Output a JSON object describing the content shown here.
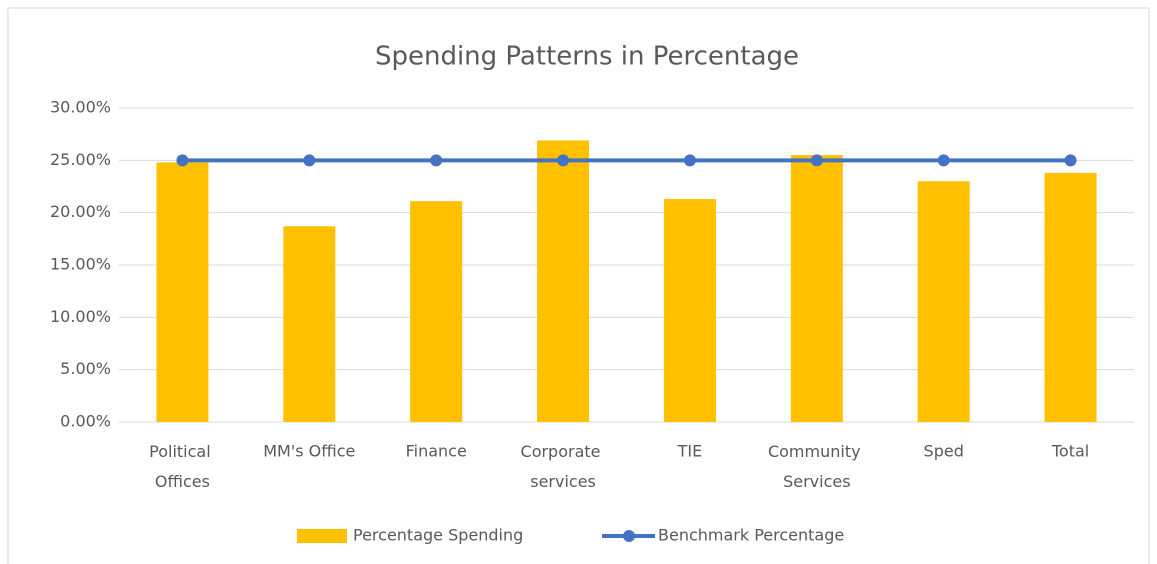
{
  "chart_data": {
    "type": "bar",
    "title": "Spending Patterns in Percentage",
    "categories": [
      "Political Offices",
      "MM's Office",
      "Finance",
      "Corporate services",
      "TIE",
      "Community Services",
      "Sped",
      "Total"
    ],
    "series": [
      {
        "name": "Percentage Spending",
        "type": "bar",
        "color": "#ffc000",
        "values": [
          24.8,
          18.7,
          21.1,
          26.9,
          21.3,
          25.5,
          23.0,
          23.8
        ]
      },
      {
        "name": "Benchmark Percentage",
        "type": "line",
        "color": "#4472c4",
        "values": [
          25,
          25,
          25,
          25,
          25,
          25,
          25,
          25
        ]
      }
    ],
    "ylim": [
      0,
      30
    ],
    "yticks": [
      {
        "value": 0,
        "label": "0.00%"
      },
      {
        "value": 5,
        "label": "5.00%"
      },
      {
        "value": 10,
        "label": "10.00%"
      },
      {
        "value": 15,
        "label": "15.00%"
      },
      {
        "value": 20,
        "label": "20.00%"
      },
      {
        "value": 25,
        "label": "25.00%"
      },
      {
        "value": 30,
        "label": "30.00%"
      }
    ],
    "grid": true,
    "legend": "bottom"
  }
}
